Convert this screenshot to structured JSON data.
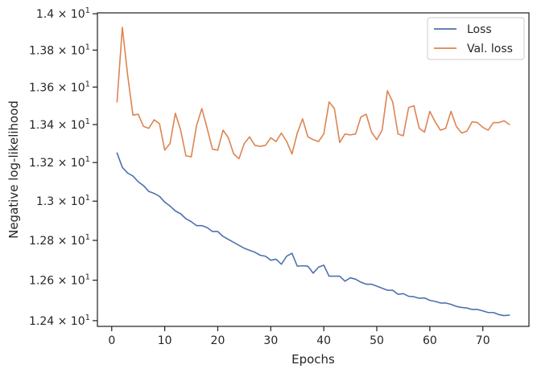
{
  "chart_data": {
    "type": "line",
    "xlabel": "Epochs",
    "ylabel": "Negative log-likelihood",
    "xlim": [
      -2.7,
      78.7
    ],
    "ylim": [
      12.372,
      14.005
    ],
    "x_ticks": [
      0,
      10,
      20,
      30,
      40,
      50,
      60,
      70
    ],
    "x_tick_labels": [
      "0",
      "10",
      "20",
      "30",
      "40",
      "50",
      "60",
      "70"
    ],
    "y_ticks": [
      12.4,
      12.6,
      12.8,
      13.0,
      13.2,
      13.4,
      13.6,
      13.8,
      14.0
    ],
    "y_tick_labels": [
      {
        "mantissa": "1.24",
        "times": " × ",
        "base": "10",
        "exp": "1"
      },
      {
        "mantissa": "1.26",
        "times": " × ",
        "base": "10",
        "exp": "1"
      },
      {
        "mantissa": "1.28",
        "times": " × ",
        "base": "10",
        "exp": "1"
      },
      {
        "mantissa": "1.3",
        "times": " × ",
        "base": "10",
        "exp": "1"
      },
      {
        "mantissa": "1.32",
        "times": " × ",
        "base": "10",
        "exp": "1"
      },
      {
        "mantissa": "1.34",
        "times": " × ",
        "base": "10",
        "exp": "1"
      },
      {
        "mantissa": "1.36",
        "times": " × ",
        "base": "10",
        "exp": "1"
      },
      {
        "mantissa": "1.38",
        "times": " × ",
        "base": "10",
        "exp": "1"
      },
      {
        "mantissa": "1.4",
        "times": " × ",
        "base": "10",
        "exp": "1"
      }
    ],
    "y_scale": "log",
    "grid": false,
    "legend_position": "top-right",
    "x": [
      1,
      2,
      3,
      4,
      5,
      6,
      7,
      8,
      9,
      10,
      11,
      12,
      13,
      14,
      15,
      16,
      17,
      18,
      19,
      20,
      21,
      22,
      23,
      24,
      25,
      26,
      27,
      28,
      29,
      30,
      31,
      32,
      33,
      34,
      35,
      36,
      37,
      38,
      39,
      40,
      41,
      42,
      43,
      44,
      45,
      46,
      47,
      48,
      49,
      50,
      51,
      52,
      53,
      54,
      55,
      56,
      57,
      58,
      59,
      60,
      61,
      62,
      63,
      64,
      65,
      66,
      67,
      68,
      69,
      70,
      71,
      72,
      73,
      74,
      75
    ],
    "series": [
      {
        "name": "Loss",
        "color": "#4c72b0",
        "values": [
          13.25,
          13.175,
          13.145,
          13.13,
          13.1,
          13.08,
          13.05,
          13.04,
          13.025,
          12.995,
          12.975,
          12.95,
          12.935,
          12.91,
          12.895,
          12.875,
          12.875,
          12.865,
          12.845,
          12.845,
          12.82,
          12.805,
          12.79,
          12.775,
          12.76,
          12.75,
          12.74,
          12.725,
          12.72,
          12.7,
          12.705,
          12.68,
          12.72,
          12.735,
          12.67,
          12.672,
          12.67,
          12.635,
          12.665,
          12.675,
          12.62,
          12.62,
          12.62,
          12.595,
          12.612,
          12.605,
          12.59,
          12.58,
          12.58,
          12.57,
          12.56,
          12.55,
          12.55,
          12.53,
          12.533,
          12.52,
          12.518,
          12.51,
          12.512,
          12.5,
          12.495,
          12.487,
          12.487,
          12.48,
          12.47,
          12.465,
          12.462,
          12.455,
          12.455,
          12.448,
          12.44,
          12.44,
          12.43,
          12.425,
          12.427
        ]
      },
      {
        "name": "Val. loss",
        "color": "#dd8452",
        "values": [
          13.52,
          13.925,
          13.665,
          13.45,
          13.455,
          13.39,
          13.38,
          13.425,
          13.405,
          13.265,
          13.3,
          13.46,
          13.37,
          13.235,
          13.23,
          13.395,
          13.485,
          13.38,
          13.27,
          13.265,
          13.37,
          13.33,
          13.245,
          13.22,
          13.3,
          13.335,
          13.29,
          13.285,
          13.29,
          13.33,
          13.31,
          13.355,
          13.31,
          13.245,
          13.355,
          13.43,
          13.335,
          13.32,
          13.31,
          13.35,
          13.52,
          13.485,
          13.305,
          13.35,
          13.345,
          13.35,
          13.44,
          13.455,
          13.36,
          13.32,
          13.37,
          13.58,
          13.52,
          13.35,
          13.34,
          13.49,
          13.5,
          13.38,
          13.36,
          13.47,
          13.415,
          13.37,
          13.38,
          13.47,
          13.39,
          13.355,
          13.365,
          13.415,
          13.41,
          13.385,
          13.37,
          13.41,
          13.41,
          13.42,
          13.4
        ]
      }
    ]
  }
}
